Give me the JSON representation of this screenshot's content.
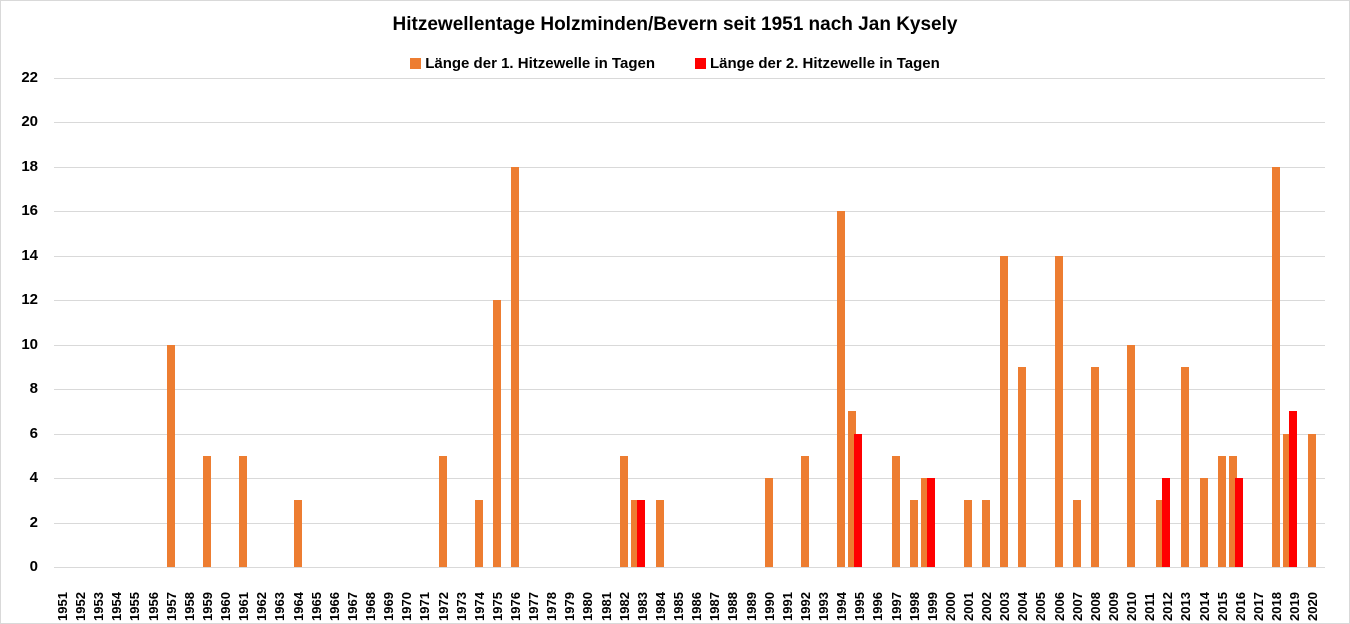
{
  "chart_data": {
    "type": "bar",
    "title": "Hitzewellentage Holzminden/Bevern seit 1951 nach Jan Kysely",
    "xlabel": "",
    "ylabel": "",
    "ylim": [
      0,
      22
    ],
    "yticks": [
      0,
      2,
      4,
      6,
      8,
      10,
      12,
      14,
      16,
      18,
      20,
      22
    ],
    "grid": true,
    "legend_position": "top",
    "categories": [
      "1951",
      "1952",
      "1953",
      "1954",
      "1955",
      "1956",
      "1957",
      "1958",
      "1959",
      "1960",
      "1961",
      "1962",
      "1963",
      "1964",
      "1965",
      "1966",
      "1967",
      "1968",
      "1969",
      "1970",
      "1971",
      "1972",
      "1973",
      "1974",
      "1975",
      "1976",
      "1977",
      "1978",
      "1979",
      "1980",
      "1981",
      "1982",
      "1983",
      "1984",
      "1985",
      "1986",
      "1987",
      "1988",
      "1989",
      "1990",
      "1991",
      "1992",
      "1993",
      "1994",
      "1995",
      "1996",
      "1997",
      "1998",
      "1999",
      "2000",
      "2001",
      "2002",
      "2003",
      "2004",
      "2005",
      "2006",
      "2007",
      "2008",
      "2009",
      "2010",
      "2011",
      "2012",
      "2013",
      "2014",
      "2015",
      "2016",
      "2017",
      "2018",
      "2019",
      "2020"
    ],
    "series": [
      {
        "name": "Länge der 1. Hitzewelle in Tagen",
        "color": "#ED7D31",
        "values": [
          0,
          0,
          0,
          0,
          0,
          0,
          10,
          0,
          5,
          0,
          5,
          0,
          0,
          3,
          0,
          0,
          0,
          0,
          0,
          0,
          0,
          5,
          0,
          3,
          12,
          18,
          0,
          0,
          0,
          0,
          0,
          5,
          3,
          3,
          0,
          0,
          0,
          0,
          0,
          4,
          0,
          5,
          0,
          16,
          7,
          0,
          5,
          3,
          4,
          0,
          3,
          3,
          14,
          9,
          0,
          14,
          3,
          9,
          0,
          10,
          0,
          3,
          9,
          4,
          5,
          5,
          0,
          18,
          6,
          6
        ]
      },
      {
        "name": "Länge der 2. Hitzewelle in Tagen",
        "color": "#FF0000",
        "values": [
          0,
          0,
          0,
          0,
          0,
          0,
          0,
          0,
          0,
          0,
          0,
          0,
          0,
          0,
          0,
          0,
          0,
          0,
          0,
          0,
          0,
          0,
          0,
          0,
          0,
          0,
          0,
          0,
          0,
          0,
          0,
          0,
          3,
          0,
          0,
          0,
          0,
          0,
          0,
          0,
          0,
          0,
          0,
          0,
          6,
          0,
          0,
          0,
          4,
          0,
          0,
          0,
          0,
          0,
          0,
          0,
          0,
          0,
          0,
          0,
          0,
          4,
          0,
          0,
          0,
          4,
          0,
          0,
          7,
          0
        ]
      }
    ]
  }
}
